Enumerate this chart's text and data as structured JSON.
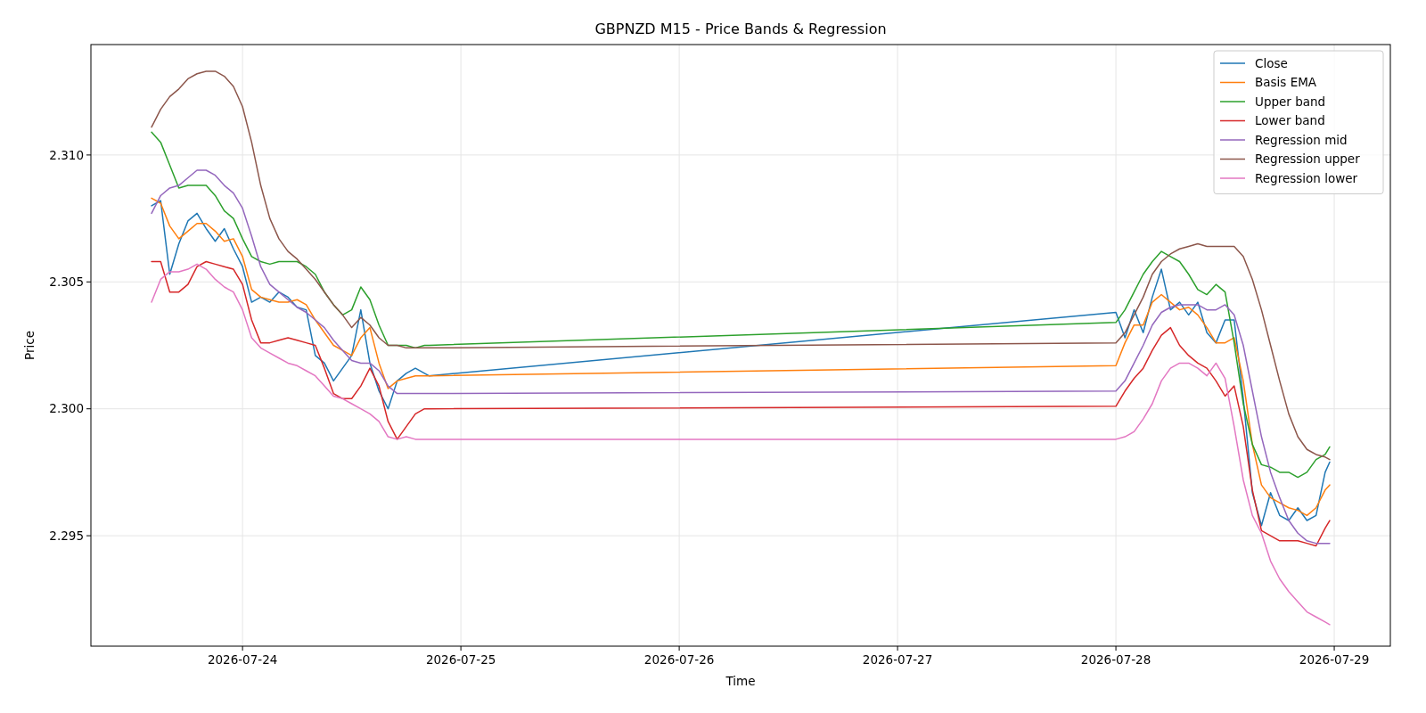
{
  "chart_data": {
    "type": "line",
    "title": "GBPNZD M15 - Price Bands & Regression",
    "xlabel": "Time",
    "ylabel": "Price",
    "x": [
      "2026-07-23T14:00",
      "2026-07-23T15:00",
      "2026-07-23T16:00",
      "2026-07-23T17:00",
      "2026-07-23T18:00",
      "2026-07-23T19:00",
      "2026-07-23T20:00",
      "2026-07-23T21:00",
      "2026-07-23T22:00",
      "2026-07-23T23:00",
      "2026-07-24T00:00",
      "2026-07-24T01:00",
      "2026-07-24T02:00",
      "2026-07-24T03:00",
      "2026-07-24T04:00",
      "2026-07-24T05:00",
      "2026-07-24T06:00",
      "2026-07-24T07:00",
      "2026-07-24T08:00",
      "2026-07-24T09:00",
      "2026-07-24T10:00",
      "2026-07-24T11:00",
      "2026-07-24T12:00",
      "2026-07-24T13:00",
      "2026-07-24T14:00",
      "2026-07-24T15:00",
      "2026-07-24T16:00",
      "2026-07-24T17:00",
      "2026-07-24T18:00",
      "2026-07-24T19:00",
      "2026-07-24T20:00",
      "2026-07-24T20:30",
      "2026-07-28T00:00",
      "2026-07-28T01:00",
      "2026-07-28T02:00",
      "2026-07-28T03:00",
      "2026-07-28T04:00",
      "2026-07-28T05:00",
      "2026-07-28T06:00",
      "2026-07-28T07:00",
      "2026-07-28T08:00",
      "2026-07-28T09:00",
      "2026-07-28T10:00",
      "2026-07-28T11:00",
      "2026-07-28T12:00",
      "2026-07-28T13:00",
      "2026-07-28T14:00",
      "2026-07-28T15:00",
      "2026-07-28T16:00",
      "2026-07-28T17:00",
      "2026-07-28T18:00",
      "2026-07-28T19:00",
      "2026-07-28T20:00",
      "2026-07-28T21:00",
      "2026-07-28T22:00",
      "2026-07-28T23:00",
      "2026-07-28T23:30"
    ],
    "series": [
      {
        "name": "Close",
        "color": "#1f77b4",
        "values": [
          2.308,
          2.3082,
          2.3053,
          2.3065,
          2.3074,
          2.3077,
          2.3071,
          2.3066,
          2.3071,
          2.3063,
          2.3056,
          2.3042,
          2.3044,
          2.3042,
          2.3046,
          2.3044,
          2.304,
          2.3039,
          2.3021,
          2.3018,
          2.3011,
          2.3016,
          2.3021,
          2.3039,
          2.3018,
          2.3007,
          2.3,
          2.3011,
          2.3014,
          2.3016,
          2.3014,
          2.3013,
          2.3038,
          2.3028,
          2.3039,
          2.303,
          2.3044,
          2.3055,
          2.3039,
          2.3042,
          2.3037,
          2.3042,
          2.303,
          2.3026,
          2.3035,
          2.3035,
          2.3004,
          2.2967,
          2.2954,
          2.2967,
          2.2958,
          2.2956,
          2.2961,
          2.2956,
          2.2958,
          2.2975,
          2.2979
        ]
      },
      {
        "name": "Basis EMA",
        "color": "#ff7f0e",
        "values": [
          2.3083,
          2.3081,
          2.3072,
          2.3067,
          2.307,
          2.3073,
          2.3073,
          2.307,
          2.3066,
          2.3067,
          2.306,
          2.3047,
          2.3044,
          2.3043,
          2.3042,
          2.3042,
          2.3043,
          2.3041,
          2.3035,
          2.303,
          2.3025,
          2.3023,
          2.3021,
          2.3028,
          2.3032,
          2.3018,
          2.3008,
          2.3011,
          2.3012,
          2.3013,
          2.3013,
          2.3013,
          2.3017,
          2.3026,
          2.3033,
          2.3033,
          2.3042,
          2.3045,
          2.3042,
          2.3039,
          2.304,
          2.3037,
          2.3032,
          2.3026,
          2.3026,
          2.3028,
          2.3011,
          2.2986,
          2.297,
          2.2965,
          2.2963,
          2.2961,
          2.296,
          2.2958,
          2.2961,
          2.2968,
          2.297
        ]
      },
      {
        "name": "Upper band",
        "color": "#2ca02c",
        "values": [
          2.3109,
          2.3105,
          2.3096,
          2.3087,
          2.3088,
          2.3088,
          2.3088,
          2.3084,
          2.3078,
          2.3075,
          2.3067,
          2.306,
          2.3058,
          2.3057,
          2.3058,
          2.3058,
          2.3058,
          2.3056,
          2.3053,
          2.3046,
          2.3041,
          2.3037,
          2.3039,
          2.3048,
          2.3043,
          2.3033,
          2.3025,
          2.3025,
          2.3025,
          2.3024,
          2.3025,
          2.3025,
          2.3034,
          2.3039,
          2.3046,
          2.3053,
          2.3058,
          2.3062,
          2.306,
          2.3058,
          2.3053,
          2.3047,
          2.3045,
          2.3049,
          2.3046,
          2.3026,
          2.3002,
          2.2986,
          2.2978,
          2.2977,
          2.2975,
          2.2975,
          2.2973,
          2.2975,
          2.298,
          2.2982,
          2.2985
        ]
      },
      {
        "name": "Lower band",
        "color": "#d62728",
        "values": [
          2.3058,
          2.3058,
          2.3046,
          2.3046,
          2.3049,
          2.3056,
          2.3058,
          2.3057,
          2.3056,
          2.3055,
          2.3049,
          2.3035,
          2.3026,
          2.3026,
          2.3027,
          2.3028,
          2.3027,
          2.3026,
          2.3025,
          2.3016,
          2.3006,
          2.3004,
          2.3004,
          2.3009,
          2.3016,
          2.3009,
          2.2995,
          2.2988,
          2.2993,
          2.2998,
          2.3,
          2.3,
          2.3001,
          2.3007,
          2.3012,
          2.3016,
          2.3023,
          2.3029,
          2.3032,
          2.3025,
          2.3021,
          2.3018,
          2.3016,
          2.3011,
          2.3005,
          2.3009,
          2.2993,
          2.2968,
          2.2952,
          2.295,
          2.2948,
          2.2948,
          2.2948,
          2.2947,
          2.2946,
          2.2953,
          2.2956
        ]
      },
      {
        "name": "Regression mid",
        "color": "#9467bd",
        "values": [
          2.3077,
          2.3084,
          2.3087,
          2.3088,
          2.3091,
          2.3094,
          2.3094,
          2.3092,
          2.3088,
          2.3085,
          2.3079,
          2.3068,
          2.3056,
          2.3049,
          2.3046,
          2.3043,
          2.304,
          2.3038,
          2.3035,
          2.3032,
          2.3027,
          2.3023,
          2.3019,
          2.3018,
          2.3018,
          2.3015,
          2.3009,
          2.3006,
          2.3006,
          2.3006,
          2.3006,
          2.3006,
          2.3007,
          2.3011,
          2.3018,
          2.3025,
          2.3033,
          2.3038,
          2.304,
          2.3041,
          2.3041,
          2.3041,
          2.3039,
          2.3039,
          2.3041,
          2.3037,
          2.3025,
          2.3007,
          2.2989,
          2.2975,
          2.2965,
          2.2956,
          2.2951,
          2.2948,
          2.2947,
          2.2947,
          2.2947
        ]
      },
      {
        "name": "Regression upper",
        "color": "#8c564b",
        "values": [
          2.3111,
          2.3118,
          2.3123,
          2.3126,
          2.313,
          2.3132,
          2.3133,
          2.3133,
          2.3131,
          2.3127,
          2.3119,
          2.3105,
          2.3088,
          2.3075,
          2.3067,
          2.3062,
          2.3059,
          2.3055,
          2.3051,
          2.3046,
          2.3041,
          2.3037,
          2.3032,
          2.3036,
          2.3033,
          2.3028,
          2.3025,
          2.3025,
          2.3024,
          2.3024,
          2.3024,
          2.3024,
          2.3026,
          2.303,
          2.3037,
          2.3044,
          2.3053,
          2.3058,
          2.3061,
          2.3063,
          2.3064,
          2.3065,
          2.3064,
          2.3064,
          2.3064,
          2.3064,
          2.306,
          2.3051,
          2.3039,
          2.3025,
          2.3011,
          2.2998,
          2.2989,
          2.2984,
          2.2982,
          2.2981,
          2.298
        ]
      },
      {
        "name": "Regression lower",
        "color": "#e377c2",
        "values": [
          2.3042,
          2.3051,
          2.3054,
          2.3054,
          2.3055,
          2.3057,
          2.3055,
          2.3051,
          2.3048,
          2.3046,
          2.3039,
          2.3028,
          2.3024,
          2.3022,
          2.302,
          2.3018,
          2.3017,
          2.3015,
          2.3013,
          2.3009,
          2.3005,
          2.3004,
          2.3002,
          2.3,
          2.2998,
          2.2995,
          2.2989,
          2.2988,
          2.2989,
          2.2988,
          2.2988,
          2.2988,
          2.2988,
          2.2989,
          2.2991,
          2.2996,
          2.3002,
          2.3011,
          2.3016,
          2.3018,
          2.3018,
          2.3016,
          2.3013,
          2.3018,
          2.3012,
          2.2993,
          2.2972,
          2.2958,
          2.2951,
          2.294,
          2.2933,
          2.2928,
          2.2924,
          2.292,
          2.2918,
          2.2916,
          2.2915
        ]
      }
    ],
    "xlim": [
      "2026-07-23T07:20",
      "2026-07-29T06:10"
    ],
    "xticks": [
      "2026-07-24",
      "2026-07-25",
      "2026-07-26",
      "2026-07-27",
      "2026-07-28",
      "2026-07-29"
    ],
    "ylim": [
      2.29065,
      2.31435
    ],
    "yticks": [
      2.295,
      {
        "value": 2.3,
        "label": "2.300"
      },
      2.305,
      {
        "value": 2.31,
        "label": "2.310"
      }
    ],
    "grid": true,
    "legend": "top right"
  }
}
